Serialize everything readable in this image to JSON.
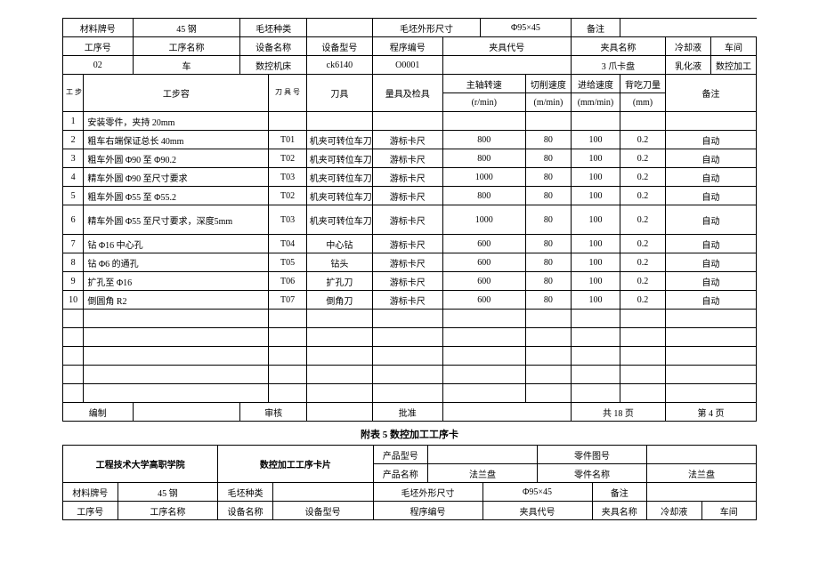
{
  "top": {
    "material_label": "材料牌号",
    "material_value": "45 钢",
    "blank_type_label": "毛坯种类",
    "blank_type_value": "",
    "blank_size_label": "毛坯外形尺寸",
    "blank_size_value": "Φ95×45",
    "remark_label": "备注",
    "remark_value": "",
    "proc_no_label": "工序号",
    "proc_name_label": "工序名称",
    "equip_name_label": "设备名称",
    "equip_model_label": "设备型号",
    "program_no_label": "程序编号",
    "fixture_code_label": "夹具代号",
    "fixture_name_label": "夹具名称",
    "coolant_label": "冷却液",
    "workshop_label": "车间",
    "proc_no_value": "02",
    "proc_name_value": "车",
    "equip_name_value": "数控机床",
    "equip_model_value": "ck6140",
    "program_no_value": "O0001",
    "fixture_code_value": "",
    "fixture_name_value": "3 爪卡盘",
    "coolant_value": "乳化液",
    "workshop_value": "数控加工"
  },
  "colhdr": {
    "step_no": "工\n步\n号",
    "step_content": "工步容",
    "tool_no": "刀\n具\n号",
    "tool": "刀具",
    "gauge": "量具及检具",
    "spindle": "主轴转速",
    "spindle_unit": "(r/min)",
    "cut_speed": "切削速度",
    "cut_speed_unit": "(m/min)",
    "feed": "进给速度",
    "feed_unit": "(mm/min)",
    "depth": "背吃刀量",
    "depth_unit": "(mm)",
    "remark": "备注"
  },
  "steps": [
    {
      "no": "1",
      "content": "安装零件，夹持 20mm",
      "toolno": "",
      "tool": "",
      "gauge": "",
      "spindle": "",
      "cut": "",
      "feed": "",
      "depth": "",
      "remark": ""
    },
    {
      "no": "2",
      "content": "粗车右端保证总长 40mm",
      "toolno": "T01",
      "tool": "机夹可转位车刀",
      "gauge": "游标卡尺",
      "spindle": "800",
      "cut": "80",
      "feed": "100",
      "depth": "0.2",
      "remark": "自动"
    },
    {
      "no": "3",
      "content": "粗车外圆 Φ90 至 Φ90.2",
      "toolno": "T02",
      "tool": "机夹可转位车刀",
      "gauge": "游标卡尺",
      "spindle": "800",
      "cut": "80",
      "feed": "100",
      "depth": "0.2",
      "remark": "自动"
    },
    {
      "no": "4",
      "content": "精车外圆 Φ90 至尺寸要求",
      "toolno": "T03",
      "tool": "机夹可转位车刀",
      "gauge": "游标卡尺",
      "spindle": "1000",
      "cut": "80",
      "feed": "100",
      "depth": "0.2",
      "remark": "自动"
    },
    {
      "no": "5",
      "content": "粗车外圆 Φ55 至 Φ55.2",
      "toolno": "T02",
      "tool": "机夹可转位车刀",
      "gauge": "游标卡尺",
      "spindle": "800",
      "cut": "80",
      "feed": "100",
      "depth": "0.2",
      "remark": "自动"
    },
    {
      "no": "6",
      "content": "精车外圆 Φ55 至尺寸要求，深度5mm",
      "toolno": "T03",
      "tool": "机夹可转位车刀",
      "gauge": "游标卡尺",
      "spindle": "1000",
      "cut": "80",
      "feed": "100",
      "depth": "0.2",
      "remark": "自动"
    },
    {
      "no": "7",
      "content": "钻 Φ16 中心孔",
      "toolno": "T04",
      "tool": "中心钻",
      "gauge": "游标卡尺",
      "spindle": "600",
      "cut": "80",
      "feed": "100",
      "depth": "0.2",
      "remark": "自动"
    },
    {
      "no": "8",
      "content": "钻 Φ6 的通孔",
      "toolno": "T05",
      "tool": "钻头",
      "gauge": "游标卡尺",
      "spindle": "600",
      "cut": "80",
      "feed": "100",
      "depth": "0.2",
      "remark": "自动"
    },
    {
      "no": "9",
      "content": "扩孔至 Φ16",
      "toolno": "T06",
      "tool": "扩孔刀",
      "gauge": "游标卡尺",
      "spindle": "600",
      "cut": "80",
      "feed": "100",
      "depth": "0.2",
      "remark": "自动"
    },
    {
      "no": "10",
      "content": "倒圆角 R2",
      "toolno": "T07",
      "tool": "倒角刀",
      "gauge": "游标卡尺",
      "spindle": "600",
      "cut": "80",
      "feed": "100",
      "depth": "0.2",
      "remark": "自动"
    }
  ],
  "footer": {
    "compile": "编制",
    "review": "审核",
    "approve": "批准",
    "total_pages": "共 18 页",
    "page_no": "第 4 页"
  },
  "caption": "附表 5      数控加工工序卡",
  "bottom": {
    "school": "工程技术大学高职学院",
    "card_title": "数控加工工序卡片",
    "prod_model_label": "产品型号",
    "prod_model_value": "",
    "part_draw_label": "零件图号",
    "part_draw_value": "",
    "prod_name_label": "产品名称",
    "prod_name_value": "法兰盘",
    "part_name_label": "零件名称",
    "part_name_value": "法兰盘",
    "material_label": "材料牌号",
    "material_value": "45 钢",
    "blank_type_label": "毛坯种类",
    "blank_type_value": "",
    "blank_size_label": "毛坯外形尺寸",
    "blank_size_value": "Φ95×45",
    "remark_label": "备注",
    "remark_value": "",
    "proc_no_label": "工序号",
    "proc_name_label": "工序名称",
    "equip_name_label": "设备名称",
    "equip_model_label": "设备型号",
    "program_no_label": "程序编号",
    "fixture_code_label": "夹具代号",
    "fixture_name_label": "夹具名称",
    "coolant_label": "冷却液",
    "workshop_label": "车间"
  }
}
